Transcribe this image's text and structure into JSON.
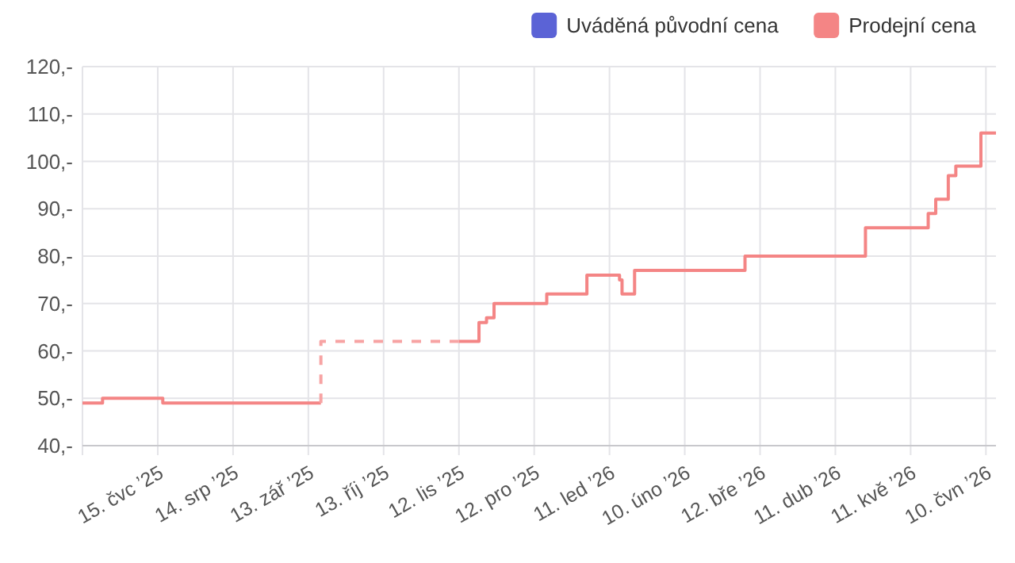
{
  "chart_data": {
    "type": "step",
    "legend": "top right",
    "grid": true,
    "xlim": [
      "2025-06-15",
      "2026-06-14"
    ],
    "xticks": [
      {
        "value": "2025-06-15",
        "label": null
      },
      {
        "value": "2025-07-15",
        "label": "15. čvc ’25"
      },
      {
        "value": "2025-08-14",
        "label": "14. srp ’25"
      },
      {
        "value": "2025-09-13",
        "label": "13. zář ’25"
      },
      {
        "value": "2025-10-13",
        "label": "13. říj ’25"
      },
      {
        "value": "2025-11-12",
        "label": "12. lis ’25"
      },
      {
        "value": "2025-12-12",
        "label": "12. pro ’25"
      },
      {
        "value": "2026-01-11",
        "label": "11. led ’26"
      },
      {
        "value": "2026-02-10",
        "label": "10. úno ’26"
      },
      {
        "value": "2026-03-12",
        "label": "12. bře ’26"
      },
      {
        "value": "2026-04-11",
        "label": "11. dub ’26"
      },
      {
        "value": "2026-05-11",
        "label": "11. kvě ’26"
      },
      {
        "value": "2026-06-10",
        "label": "10. čvn ’26"
      }
    ],
    "ylim": [
      40,
      120
    ],
    "yticks": [
      {
        "value": 40,
        "label": "40,-"
      },
      {
        "value": 50,
        "label": "50,-"
      },
      {
        "value": 60,
        "label": "60,-"
      },
      {
        "value": 70,
        "label": "70,-"
      },
      {
        "value": 80,
        "label": "80,-"
      },
      {
        "value": 90,
        "label": "90,-"
      },
      {
        "value": 100,
        "label": "100,-"
      },
      {
        "value": 110,
        "label": "110,-"
      },
      {
        "value": 120,
        "label": "120,-"
      }
    ],
    "series": [
      {
        "name": "Uváděná původní cena",
        "color": "#5b63d6"
      },
      {
        "name": "Prodejní cena",
        "color": "#f48585",
        "x": [
          "2025-06-15",
          "2025-06-23",
          "2025-07-17",
          "2025-09-18",
          "2025-10-15",
          "2025-11-12",
          "2025-11-20",
          "2025-11-23",
          "2025-11-26",
          "2025-12-17",
          "2026-01-02",
          "2026-01-15",
          "2026-01-16",
          "2026-01-21",
          "2026-03-06",
          "2026-04-23",
          "2026-05-18",
          "2026-05-21",
          "2026-05-26",
          "2026-05-29",
          "2026-06-08",
          "2026-06-14"
        ],
        "values": [
          49,
          50,
          49,
          49,
          null,
          62,
          66,
          67,
          70,
          72,
          76,
          75,
          72,
          77,
          80,
          86,
          89,
          92,
          97,
          99,
          106,
          106
        ]
      },
      {
        "color": "#f7a3a3",
        "line_style": "dashed",
        "x": [
          "2025-09-18",
          "2025-09-18",
          "2025-11-12"
        ],
        "values": [
          49,
          62,
          62
        ]
      }
    ]
  }
}
